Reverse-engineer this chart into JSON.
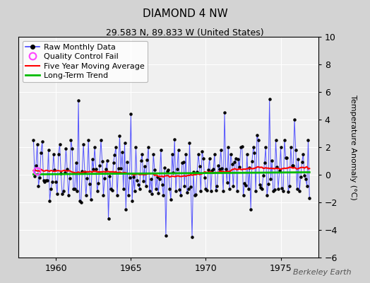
{
  "title": "DIAMOND 4 NW",
  "subtitle": "29.583 N, 89.833 W (United States)",
  "ylabel": "Temperature Anomaly (°C)",
  "watermark": "Berkeley Earth",
  "xlim": [
    1957.5,
    1977.5
  ],
  "ylim": [
    -6,
    10
  ],
  "yticks": [
    -6,
    -4,
    -2,
    0,
    2,
    4,
    6,
    8,
    10
  ],
  "xticks": [
    1960,
    1965,
    1970,
    1975
  ],
  "bg_color": "#d3d3d3",
  "plot_bg_color": "#f0f0f0",
  "line_color": "#4444ff",
  "dot_color": "#000000",
  "ma_color": "#ff0000",
  "trend_color": "#00bb00",
  "qc_color": "#ff44ff",
  "qc_x": 1958.75,
  "qc_y": 0.25,
  "trend_slope": 0.008,
  "trend_intercept": 0.1,
  "seed": 42,
  "title_fontsize": 11,
  "subtitle_fontsize": 9,
  "tick_fontsize": 9,
  "ylabel_fontsize": 8,
  "legend_fontsize": 8,
  "watermark_fontsize": 8
}
